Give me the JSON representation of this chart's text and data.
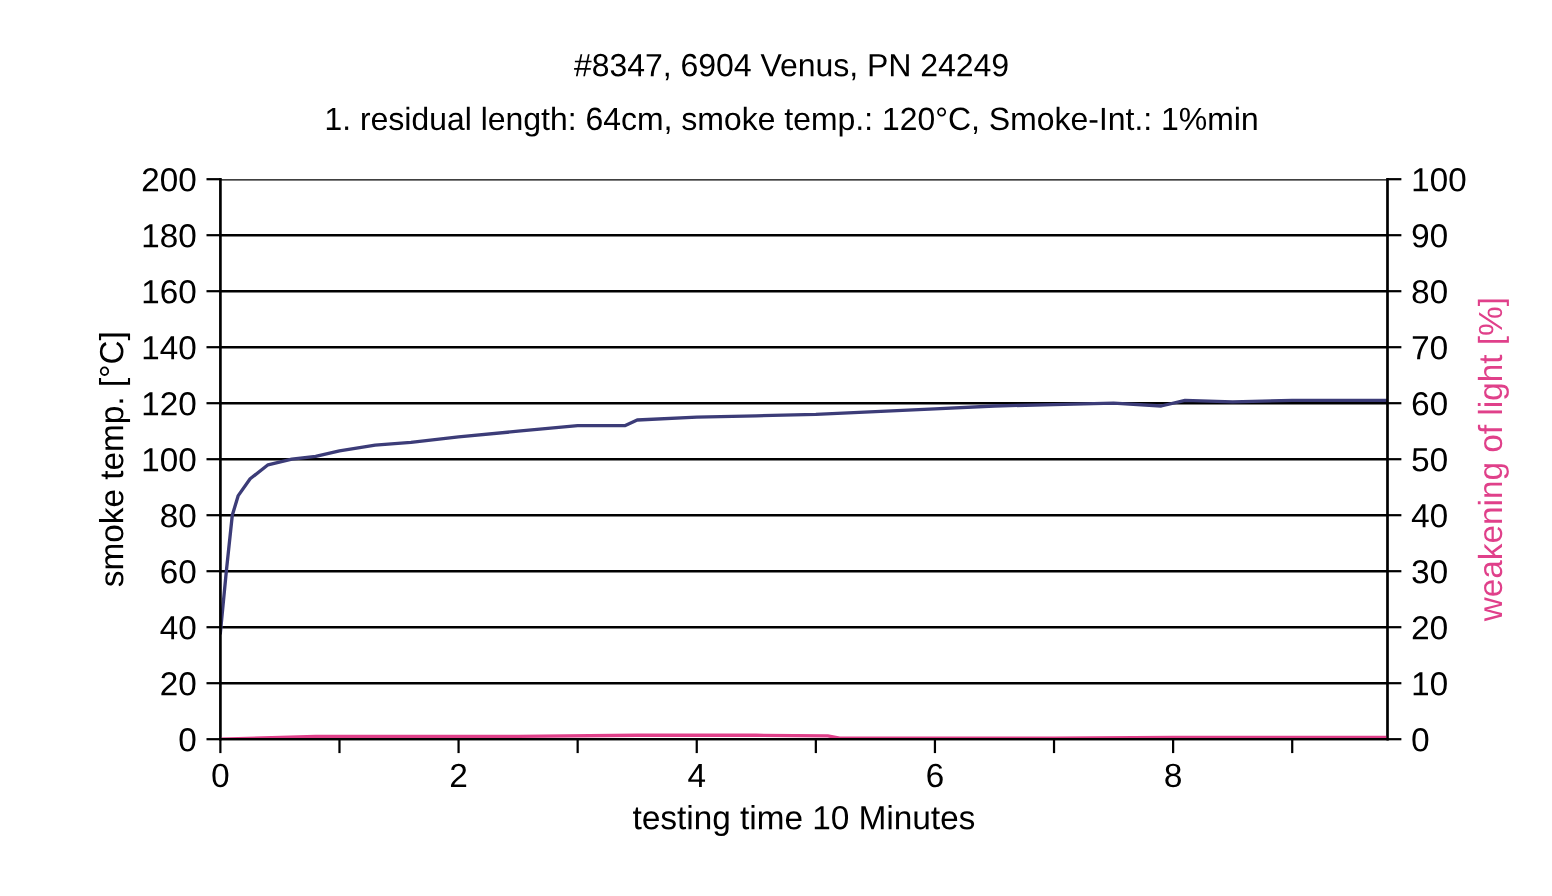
{
  "chart_data": {
    "type": "line",
    "title": "#8347, 6904 Venus, PN 24249",
    "subtitle": "1. residual length: 64cm, smoke temp.: 120°C, Smoke-Int.: 1%min",
    "xlabel": "testing time 10 Minutes",
    "ylabel": "smoke temp. [°C]",
    "y2label": "weakening of light [%]",
    "xlim": [
      0,
      9.8
    ],
    "xticks": [
      0,
      {
        "value": 1,
        "label": null
      },
      2,
      {
        "value": 3,
        "label": null
      },
      4,
      {
        "value": 5,
        "label": null
      },
      6,
      {
        "value": 7,
        "label": null
      },
      8,
      {
        "value": 9,
        "label": null
      }
    ],
    "ylim": [
      0,
      200
    ],
    "yticks": [
      0,
      20,
      40,
      60,
      80,
      100,
      120,
      140,
      160,
      180,
      200
    ],
    "y2lim": [
      0,
      100
    ],
    "y2ticks": [
      0,
      10,
      20,
      30,
      40,
      50,
      60,
      70,
      80,
      90,
      100
    ],
    "grid": "y",
    "marker": "none",
    "line_style": "solid",
    "series": [
      {
        "color": "#3c3c78",
        "x": [
          0,
          0.05,
          0.1,
          0.15,
          0.25,
          0.4,
          0.6,
          0.8,
          1.0,
          1.3,
          1.6,
          2.0,
          2.5,
          3.0,
          3.4,
          3.5,
          4.0,
          4.5,
          5.0,
          5.5,
          6.0,
          6.5,
          7.0,
          7.5,
          7.9,
          8.1,
          8.5,
          9.0,
          9.5,
          9.8
        ],
        "values": [
          38,
          60,
          80,
          87,
          93,
          98,
          100,
          101,
          103,
          105,
          106,
          108,
          110,
          112,
          112,
          114,
          115,
          115.5,
          116,
          117,
          118,
          119,
          119.5,
          120,
          119,
          121,
          120.5,
          121,
          121,
          121
        ]
      },
      {
        "color": "#e0408a",
        "axis": "y2",
        "x": [
          0,
          0.8,
          1.5,
          2.5,
          3.5,
          4.5,
          5.1,
          5.2,
          6,
          7,
          8,
          9,
          9.8
        ],
        "values": [
          0,
          0.5,
          0.5,
          0.5,
          0.7,
          0.7,
          0.6,
          0.2,
          0.2,
          0.2,
          0.3,
          0.3,
          0.3
        ]
      }
    ]
  }
}
